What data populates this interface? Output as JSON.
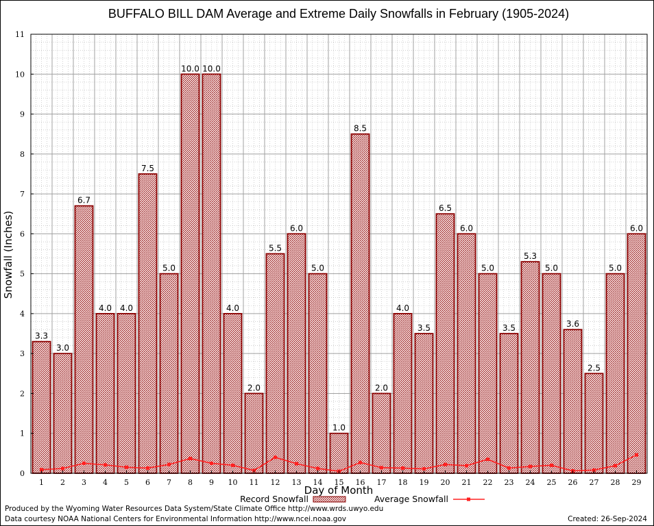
{
  "chart_data": {
    "type": "bar",
    "title": "BUFFALO BILL DAM Average and Extreme Daily Snowfalls in February (1905-2024)",
    "xlabel": "Day of Month",
    "ylabel": "Snowfall (Inches)",
    "ylim": [
      0,
      11
    ],
    "yticks": [
      0,
      1,
      2,
      3,
      4,
      5,
      6,
      7,
      8,
      9,
      10,
      11
    ],
    "grid": true,
    "categories": [
      "1",
      "2",
      "3",
      "4",
      "5",
      "6",
      "7",
      "8",
      "9",
      "10",
      "11",
      "12",
      "13",
      "14",
      "15",
      "16",
      "17",
      "18",
      "19",
      "20",
      "21",
      "22",
      "23",
      "24",
      "25",
      "26",
      "27",
      "28",
      "29"
    ],
    "series": [
      {
        "name": "Record Snowfall",
        "kind": "bar",
        "color": "#8b0000",
        "values": [
          3.3,
          3.0,
          6.7,
          4.0,
          4.0,
          7.5,
          5.0,
          10.0,
          10.0,
          4.0,
          2.0,
          5.5,
          6.0,
          5.0,
          1.0,
          8.5,
          2.0,
          4.0,
          3.5,
          6.5,
          6.0,
          5.0,
          3.5,
          5.3,
          5.0,
          3.6,
          2.5,
          5.0,
          6.0
        ],
        "labels": [
          "3.3",
          "3.0",
          "6.7",
          "4.0",
          "4.0",
          "7.5",
          "5.0",
          "10.0",
          "10.0",
          "4.0",
          "2.0",
          "5.5",
          "6.0",
          "5.0",
          "1.0",
          "8.5",
          "2.0",
          "4.0",
          "3.5",
          "6.5",
          "6.0",
          "5.0",
          "3.5",
          "5.3",
          "5.0",
          "3.6",
          "2.5",
          "5.0",
          "6.0"
        ]
      },
      {
        "name": "Average Snowfall",
        "kind": "line",
        "color": "#ff2020",
        "values": [
          0.09,
          0.12,
          0.25,
          0.21,
          0.15,
          0.13,
          0.22,
          0.37,
          0.25,
          0.2,
          0.07,
          0.4,
          0.24,
          0.12,
          0.05,
          0.27,
          0.14,
          0.13,
          0.11,
          0.22,
          0.19,
          0.35,
          0.13,
          0.17,
          0.2,
          0.06,
          0.08,
          0.19,
          0.46
        ]
      }
    ],
    "legend_position": "bottom-center"
  },
  "footer": {
    "producer": "Produced by the Wyoming Water Resources Data System/State Climate Office http://www.wrds.uwyo.edu",
    "courtesy": "Data courtesy NOAA National Centers for Environmental Information http://www.ncei.noaa.gov",
    "created": "Created:  26-Sep-2024"
  }
}
